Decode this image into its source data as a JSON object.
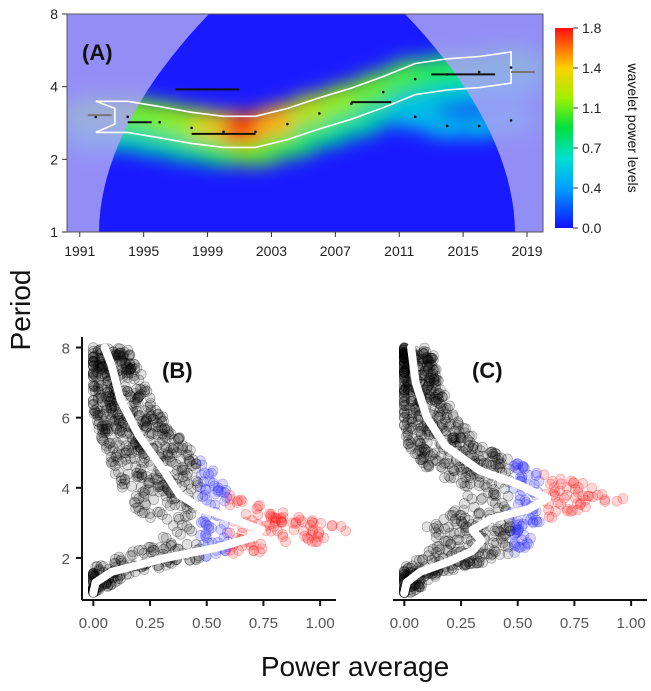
{
  "figure": {
    "ylabel": "Period",
    "xlabel": "Power average",
    "colors": {
      "shadow": "#a9a3f5",
      "heat_low": "#1a1aff",
      "heat_high": "#ff1a00",
      "contour": "#ffffff",
      "dots_low": "#000000",
      "dots_mid": "#2b2bff",
      "dots_high": "#ff2020",
      "mean_line": "#ffffff"
    }
  },
  "chart_data": [
    {
      "type": "heatmap",
      "label": "(A)",
      "title": "",
      "x_ticks": [
        "1991",
        "1995",
        "1999",
        "2003",
        "2007",
        "2011",
        "2015",
        "2019"
      ],
      "xlim": [
        1990.2,
        2020.0
      ],
      "y_ticks": [
        "1",
        "2",
        "4",
        "8"
      ],
      "ylim": [
        1,
        8
      ],
      "y_scale": "log2",
      "colorbar": {
        "title": "wavelet power levels",
        "ticks": [
          "0.0",
          "0.4",
          "0.7",
          "1.1",
          "1.4",
          "1.8"
        ],
        "range": [
          0,
          1.8
        ]
      },
      "cone_of_influence": true,
      "ridge": [
        {
          "x": 1992,
          "y": 3.0
        },
        {
          "x": 1994,
          "y": 3.0
        },
        {
          "x": 1996,
          "y": 2.85
        },
        {
          "x": 1998,
          "y": 2.7
        },
        {
          "x": 2000,
          "y": 2.6
        },
        {
          "x": 2002,
          "y": 2.6
        },
        {
          "x": 2004,
          "y": 2.8
        },
        {
          "x": 2006,
          "y": 3.1
        },
        {
          "x": 2008,
          "y": 3.4
        },
        {
          "x": 2010,
          "y": 3.8
        },
        {
          "x": 2012,
          "y": 4.3
        },
        {
          "x": 2014,
          "y": 4.5
        },
        {
          "x": 2016,
          "y": 4.6
        },
        {
          "x": 2018,
          "y": 4.8
        }
      ],
      "secondary_ridge": [
        {
          "x": 2012,
          "y": 3.0
        },
        {
          "x": 2014,
          "y": 2.75
        },
        {
          "x": 2016,
          "y": 2.75
        },
        {
          "x": 2018,
          "y": 2.9
        }
      ],
      "segments": [
        {
          "x0": 1991.5,
          "x1": 1993.0,
          "y": 3.05,
          "color": "grey"
        },
        {
          "x0": 1994.0,
          "x1": 1995.5,
          "y": 2.85,
          "color": "black"
        },
        {
          "x0": 1997.0,
          "x1": 2001.0,
          "y": 3.9,
          "color": "black"
        },
        {
          "x0": 1998.0,
          "x1": 2002.0,
          "y": 2.55,
          "color": "black"
        },
        {
          "x0": 2008.0,
          "x1": 2010.5,
          "y": 3.45,
          "color": "black"
        },
        {
          "x0": 2013.0,
          "x1": 2017.0,
          "y": 4.5,
          "color": "black"
        },
        {
          "x0": 2018.0,
          "x1": 2019.5,
          "y": 4.6,
          "color": "grey"
        }
      ]
    },
    {
      "type": "scatter",
      "label": "(B)",
      "title": "",
      "x_ticks": [
        "0.00",
        "0.25",
        "0.50",
        "0.75",
        "1.00"
      ],
      "xlim": [
        -0.05,
        1.07
      ],
      "y_ticks": [
        "2",
        "4",
        "6",
        "8"
      ],
      "ylim": [
        0.8,
        8.3
      ],
      "mean_curve": [
        {
          "period": 1.0,
          "power": 0.0
        },
        {
          "period": 1.3,
          "power": 0.01
        },
        {
          "period": 1.6,
          "power": 0.08
        },
        {
          "period": 2.0,
          "power": 0.32
        },
        {
          "period": 2.3,
          "power": 0.55
        },
        {
          "period": 2.6,
          "power": 0.71
        },
        {
          "period": 2.8,
          "power": 0.74
        },
        {
          "period": 3.1,
          "power": 0.62
        },
        {
          "period": 3.4,
          "power": 0.48
        },
        {
          "period": 3.8,
          "power": 0.38
        },
        {
          "period": 4.5,
          "power": 0.31
        },
        {
          "period": 5.5,
          "power": 0.2
        },
        {
          "period": 6.5,
          "power": 0.12
        },
        {
          "period": 7.5,
          "power": 0.08
        },
        {
          "period": 8.0,
          "power": 0.05
        }
      ]
    },
    {
      "type": "scatter",
      "label": "(C)",
      "title": "",
      "x_ticks": [
        "0.00",
        "0.25",
        "0.50",
        "0.75",
        "1.00"
      ],
      "xlim": [
        -0.05,
        1.07
      ],
      "y_ticks": [
        "2",
        "4",
        "6",
        "8"
      ],
      "ylim": [
        0.8,
        8.3
      ],
      "mean_curve": [
        {
          "period": 1.0,
          "power": 0.0
        },
        {
          "period": 1.3,
          "power": 0.01
        },
        {
          "period": 1.6,
          "power": 0.07
        },
        {
          "period": 1.9,
          "power": 0.2
        },
        {
          "period": 2.2,
          "power": 0.3
        },
        {
          "period": 2.5,
          "power": 0.34
        },
        {
          "period": 2.8,
          "power": 0.3
        },
        {
          "period": 3.1,
          "power": 0.38
        },
        {
          "period": 3.4,
          "power": 0.55
        },
        {
          "period": 3.7,
          "power": 0.63
        },
        {
          "period": 4.1,
          "power": 0.5
        },
        {
          "period": 4.5,
          "power": 0.33
        },
        {
          "period": 5.2,
          "power": 0.18
        },
        {
          "period": 6.0,
          "power": 0.1
        },
        {
          "period": 7.0,
          "power": 0.05
        },
        {
          "period": 8.0,
          "power": 0.03
        }
      ]
    }
  ]
}
